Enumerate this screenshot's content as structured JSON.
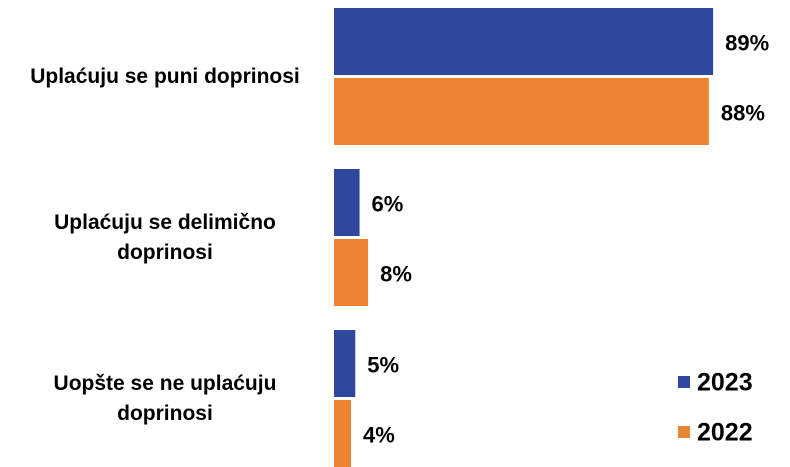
{
  "chart_data": {
    "type": "bar",
    "orientation": "horizontal",
    "categories": [
      "Uplaćuju se puni doprinosi",
      "Uplaćuju se delimično doprinosi",
      "Uopšte se ne uplaćuju doprinosi"
    ],
    "series": [
      {
        "name": "2023",
        "color": "#2f479c",
        "values": [
          89,
          6,
          5
        ],
        "value_labels": [
          "89%",
          "6%",
          "5%"
        ]
      },
      {
        "name": "2022",
        "color": "#ed8434",
        "values": [
          88,
          8,
          4
        ],
        "value_labels": [
          "88%",
          "8%",
          "4%"
        ]
      }
    ],
    "legend": "bottom-right"
  }
}
